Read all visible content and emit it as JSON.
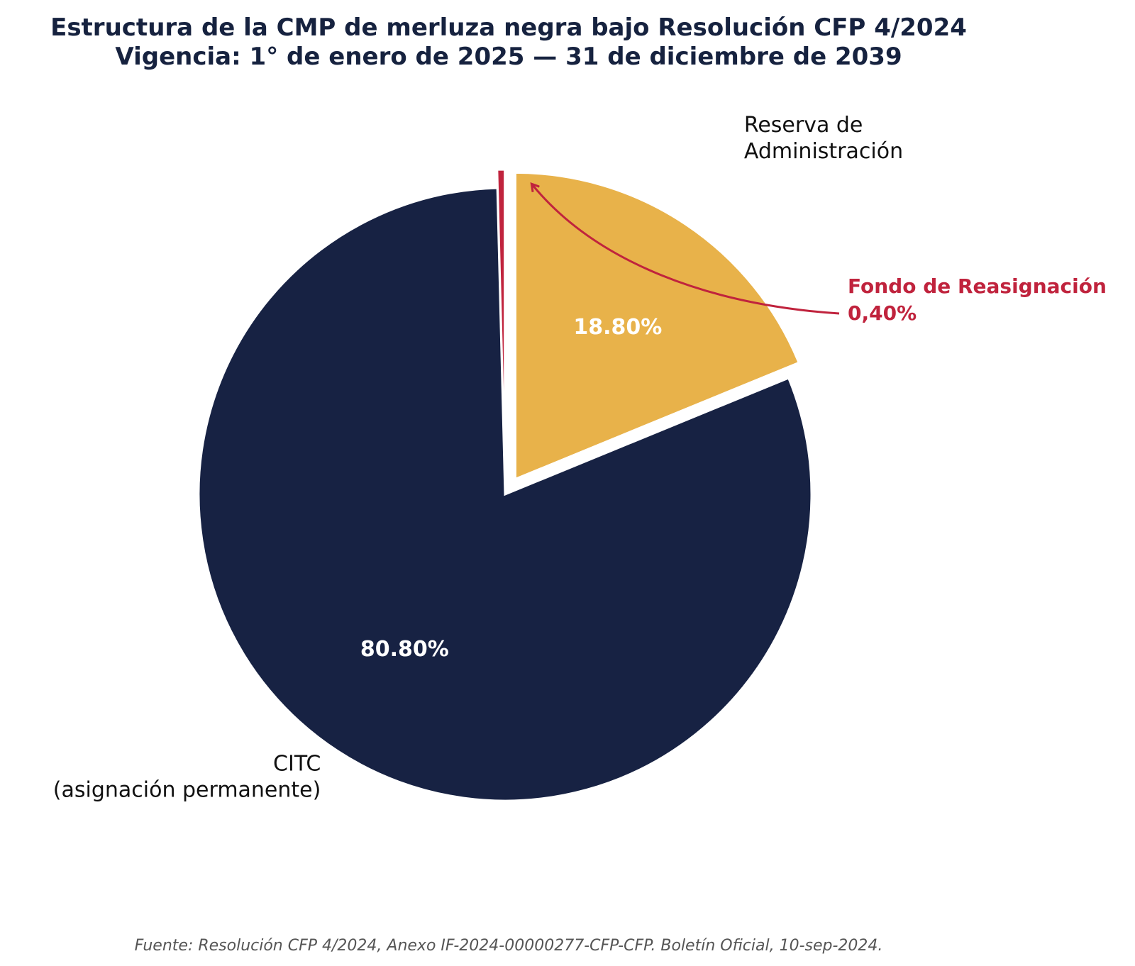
{
  "chart_data": {
    "type": "pie",
    "title": "Estructura de la CMP de merluza negra bajo Resolución CFP 4/2024",
    "subtitle": "Vigencia: 1° de enero de 2025 — 31 de diciembre de 2039",
    "slices": [
      {
        "label_lines": [
          "Reserva de",
          "Administración"
        ],
        "value": 18.8,
        "value_label": "18.80%",
        "color": "#e8b24a",
        "exploded": true
      },
      {
        "label_lines": [
          "CITC",
          "(asignación permanente)"
        ],
        "value": 80.8,
        "value_label": "80.80%",
        "color": "#172243",
        "exploded": false
      },
      {
        "label_lines": [
          "Fondo de Reasignación"
        ],
        "value": 0.4,
        "value_label": "0,40%",
        "color": "#c0233d",
        "exploded": true
      }
    ],
    "start_angle": "12 o'clock",
    "direction": "clockwise",
    "annotation": {
      "lines": [
        "Fondo de Reasignación",
        "0,40%"
      ],
      "color": "#c0233d"
    },
    "source": "Fuente: Resolución CFP 4/2024, Anexo IF-2024-00000277-CFP-CFP. Boletín Oficial, 10-sep-2024."
  }
}
